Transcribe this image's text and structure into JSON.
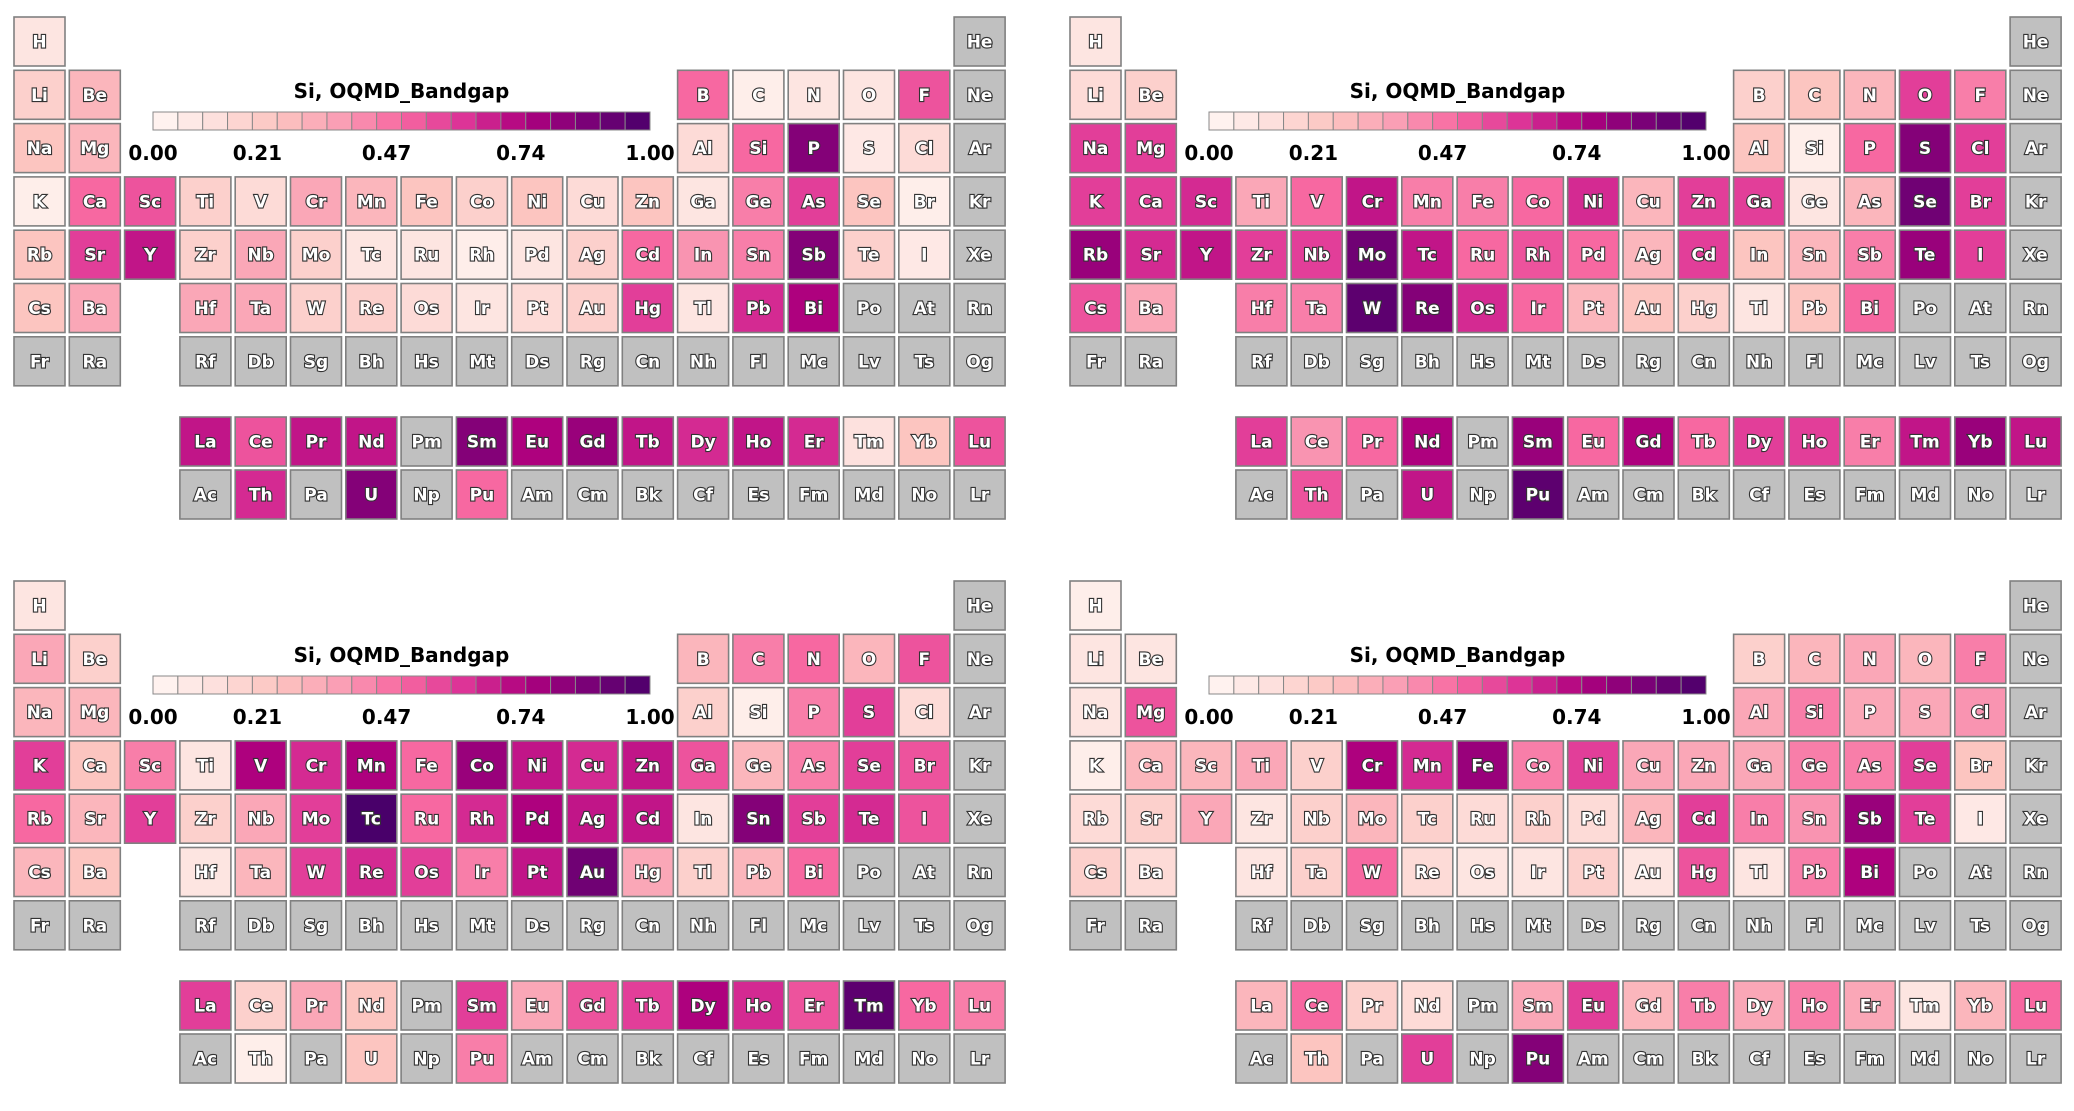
{
  "colors": {
    "missing": "#c0c0c0",
    "colormap": [
      "#fff7f3",
      "#fde0dd",
      "#fcc5c0",
      "#fa9fb5",
      "#f768a1",
      "#dd3497",
      "#ae017e",
      "#7a0177",
      "#49006a"
    ]
  },
  "colorbar": {
    "ticks": [
      "0.00",
      "0.21",
      "0.47",
      "0.74",
      "1.00"
    ],
    "tick_values": [
      0.0,
      0.21,
      0.47,
      0.74,
      1.0
    ],
    "segments": 20
  },
  "chart_data": [
    {
      "type": "heatmap",
      "title": "Si, OQMD_Bandgap",
      "range": [
        0,
        1
      ],
      "values": {
        "H": 0.1,
        "Li": 0.2,
        "Be": 0.3,
        "B": 0.5,
        "C": 0.05,
        "N": 0.1,
        "O": 0.1,
        "F": 0.55,
        "Na": 0.25,
        "Mg": 0.3,
        "Al": 0.15,
        "Si": 0.5,
        "P": 0.85,
        "S": 0.08,
        "Cl": 0.15,
        "K": 0.05,
        "Ca": 0.5,
        "Sc": 0.55,
        "Ti": 0.2,
        "V": 0.15,
        "Cr": 0.35,
        "Mn": 0.3,
        "Fe": 0.25,
        "Co": 0.2,
        "Ni": 0.25,
        "Cu": 0.15,
        "Zn": 0.25,
        "Ga": 0.1,
        "Ge": 0.45,
        "As": 0.6,
        "Se": 0.25,
        "Br": 0.05,
        "Rb": 0.25,
        "Sr": 0.6,
        "Y": 0.7,
        "Zr": 0.2,
        "Nb": 0.35,
        "Mo": 0.2,
        "Tc": 0.1,
        "Ru": 0.1,
        "Rh": 0.05,
        "Pd": 0.1,
        "Ag": 0.2,
        "Cd": 0.5,
        "In": 0.4,
        "Sn": 0.45,
        "Sb": 0.85,
        "Te": 0.2,
        "I": 0.08,
        "Cs": 0.25,
        "Ba": 0.35,
        "Hf": 0.35,
        "Ta": 0.35,
        "W": 0.2,
        "Re": 0.2,
        "Os": 0.15,
        "Ir": 0.1,
        "Pt": 0.15,
        "Au": 0.2,
        "Hg": 0.6,
        "Tl": 0.1,
        "Pb": 0.65,
        "Bi": 0.75,
        "La": 0.7,
        "Ce": 0.55,
        "Pr": 0.7,
        "Nd": 0.7,
        "Sm": 0.85,
        "Eu": 0.75,
        "Gd": 0.8,
        "Tb": 0.7,
        "Dy": 0.65,
        "Ho": 0.7,
        "Er": 0.65,
        "Tm": 0.12,
        "Yb": 0.25,
        "Lu": 0.55,
        "Th": 0.65,
        "U": 0.85,
        "Pu": 0.5
      }
    },
    {
      "type": "heatmap",
      "title": "Si, OQMD_Bandgap",
      "range": [
        0,
        1
      ],
      "values": {
        "H": 0.1,
        "Li": 0.15,
        "Be": 0.2,
        "B": 0.2,
        "C": 0.25,
        "N": 0.3,
        "O": 0.6,
        "F": 0.45,
        "Na": 0.6,
        "Mg": 0.6,
        "Al": 0.25,
        "Si": 0.05,
        "P": 0.5,
        "S": 0.85,
        "Cl": 0.6,
        "K": 0.6,
        "Ca": 0.6,
        "Sc": 0.65,
        "Ti": 0.35,
        "V": 0.5,
        "Cr": 0.7,
        "Mn": 0.45,
        "Fe": 0.45,
        "Co": 0.5,
        "Ni": 0.65,
        "Cu": 0.3,
        "Zn": 0.6,
        "Ga": 0.6,
        "Ge": 0.1,
        "As": 0.3,
        "Se": 0.9,
        "Br": 0.6,
        "Rb": 0.8,
        "Sr": 0.65,
        "Y": 0.7,
        "Zr": 0.6,
        "Nb": 0.6,
        "Mo": 0.9,
        "Tc": 0.7,
        "Ru": 0.5,
        "Rh": 0.55,
        "Pd": 0.5,
        "Ag": 0.3,
        "Cd": 0.6,
        "In": 0.25,
        "Sn": 0.3,
        "Sb": 0.45,
        "Te": 0.8,
        "I": 0.6,
        "Cs": 0.55,
        "Ba": 0.35,
        "Hf": 0.45,
        "Ta": 0.45,
        "W": 0.95,
        "Re": 0.85,
        "Os": 0.65,
        "Ir": 0.5,
        "Pt": 0.3,
        "Au": 0.25,
        "Hg": 0.2,
        "Tl": 0.1,
        "Pb": 0.25,
        "Bi": 0.5,
        "La": 0.6,
        "Ce": 0.4,
        "Pr": 0.5,
        "Nd": 0.75,
        "Sm": 0.8,
        "Eu": 0.5,
        "Gd": 0.75,
        "Tb": 0.5,
        "Dy": 0.6,
        "Ho": 0.6,
        "Er": 0.45,
        "Tm": 0.7,
        "Yb": 0.8,
        "Lu": 0.7,
        "Th": 0.55,
        "U": 0.7,
        "Pu": 0.95
      }
    },
    {
      "type": "heatmap",
      "title": "Si, OQMD_Bandgap",
      "range": [
        0,
        1
      ],
      "values": {
        "H": 0.1,
        "Li": 0.35,
        "Be": 0.2,
        "B": 0.3,
        "C": 0.45,
        "N": 0.5,
        "O": 0.3,
        "F": 0.55,
        "Na": 0.3,
        "Mg": 0.3,
        "Al": 0.2,
        "Si": 0.05,
        "P": 0.45,
        "S": 0.6,
        "Cl": 0.15,
        "K": 0.6,
        "Ca": 0.25,
        "Sc": 0.45,
        "Ti": 0.1,
        "V": 0.75,
        "Cr": 0.65,
        "Mn": 0.75,
        "Fe": 0.5,
        "Co": 0.8,
        "Ni": 0.7,
        "Cu": 0.65,
        "Zn": 0.7,
        "Ga": 0.55,
        "Ge": 0.3,
        "As": 0.45,
        "Se": 0.6,
        "Br": 0.55,
        "Rb": 0.5,
        "Sr": 0.3,
        "Y": 0.6,
        "Zr": 0.2,
        "Nb": 0.35,
        "Mo": 0.6,
        "Tc": 1.0,
        "Ru": 0.5,
        "Rh": 0.65,
        "Pd": 0.75,
        "Ag": 0.7,
        "Cd": 0.7,
        "In": 0.1,
        "Sn": 0.85,
        "Sb": 0.6,
        "Te": 0.65,
        "I": 0.55,
        "Cs": 0.3,
        "Ba": 0.25,
        "Hf": 0.1,
        "Ta": 0.3,
        "W": 0.6,
        "Re": 0.65,
        "Os": 0.6,
        "Ir": 0.45,
        "Pt": 0.7,
        "Au": 0.9,
        "Hg": 0.35,
        "Tl": 0.2,
        "Pb": 0.3,
        "Bi": 0.5,
        "La": 0.6,
        "Ce": 0.2,
        "Pr": 0.35,
        "Nd": 0.25,
        "Sm": 0.6,
        "Eu": 0.35,
        "Gd": 0.55,
        "Tb": 0.6,
        "Dy": 0.75,
        "Ho": 0.65,
        "Er": 0.55,
        "Tm": 0.95,
        "Yb": 0.5,
        "Lu": 0.45,
        "Th": 0.05,
        "U": 0.25,
        "Pu": 0.45
      }
    },
    {
      "type": "heatmap",
      "title": "Si, OQMD_Bandgap",
      "range": [
        0,
        1
      ],
      "values": {
        "H": 0.05,
        "Li": 0.1,
        "Be": 0.1,
        "B": 0.2,
        "C": 0.3,
        "N": 0.35,
        "O": 0.3,
        "F": 0.45,
        "Na": 0.1,
        "Mg": 0.55,
        "Al": 0.35,
        "Si": 0.45,
        "P": 0.35,
        "S": 0.35,
        "Cl": 0.4,
        "K": 0.05,
        "Ca": 0.3,
        "Sc": 0.3,
        "Ti": 0.35,
        "V": 0.2,
        "Cr": 0.75,
        "Mn": 0.65,
        "Fe": 0.8,
        "Co": 0.45,
        "Ni": 0.6,
        "Cu": 0.35,
        "Zn": 0.35,
        "Ga": 0.35,
        "Ge": 0.45,
        "As": 0.45,
        "Se": 0.6,
        "Br": 0.25,
        "Rb": 0.15,
        "Sr": 0.2,
        "Y": 0.35,
        "Zr": 0.1,
        "Nb": 0.2,
        "Mo": 0.3,
        "Tc": 0.2,
        "Ru": 0.15,
        "Rh": 0.2,
        "Pd": 0.15,
        "Ag": 0.3,
        "Cd": 0.6,
        "In": 0.45,
        "Sn": 0.4,
        "Sb": 0.8,
        "Te": 0.6,
        "I": 0.08,
        "Cs": 0.2,
        "Ba": 0.15,
        "Hf": 0.1,
        "Ta": 0.2,
        "W": 0.5,
        "Re": 0.15,
        "Os": 0.1,
        "Ir": 0.1,
        "Pt": 0.2,
        "Au": 0.1,
        "Hg": 0.55,
        "Tl": 0.1,
        "Pb": 0.45,
        "Bi": 0.75,
        "La": 0.3,
        "Ce": 0.5,
        "Pr": 0.2,
        "Nd": 0.15,
        "Sm": 0.35,
        "Eu": 0.6,
        "Gd": 0.3,
        "Tb": 0.45,
        "Dy": 0.35,
        "Ho": 0.45,
        "Er": 0.35,
        "Tm": 0.1,
        "Yb": 0.3,
        "Lu": 0.5,
        "Th": 0.25,
        "U": 0.6,
        "Pu": 0.85
      }
    }
  ]
}
